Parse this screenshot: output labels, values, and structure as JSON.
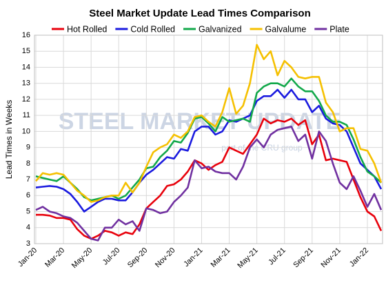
{
  "chart_data": {
    "type": "line",
    "title": "Steel Market Update Lead Times Comparison",
    "ylabel": "Lead Times in Weeks",
    "watermark": "STEEL MARKET UPDATE",
    "watermark_sub": "part of the CRU group",
    "categories": [
      "Jan-20",
      null,
      null,
      null,
      "Mar-20",
      null,
      null,
      null,
      "May-20",
      null,
      null,
      null,
      "Jul-20",
      null,
      null,
      null,
      "Sep-20",
      null,
      null,
      null,
      "Nov-20",
      null,
      null,
      null,
      "Jan-21",
      null,
      null,
      null,
      "Mar-21",
      null,
      null,
      null,
      "May-21",
      null,
      null,
      null,
      "Jul-21",
      null,
      null,
      null,
      "Sep-21",
      null,
      null,
      null,
      "Nov-21",
      null,
      null,
      null,
      "Jan-22",
      null,
      null
    ],
    "series": [
      {
        "name": "Hot Rolled",
        "color": "#e8000b",
        "values": [
          4.8,
          4.8,
          4.75,
          4.6,
          4.6,
          4.5,
          3.9,
          3.5,
          3.3,
          3.5,
          3.8,
          3.7,
          3.5,
          3.7,
          3.6,
          4.2,
          5.2,
          5.6,
          6.0,
          6.6,
          6.7,
          7.0,
          7.5,
          8.2,
          8.0,
          7.6,
          7.9,
          8.1,
          9.0,
          8.8,
          8.6,
          9.2,
          9.8,
          10.8,
          10.5,
          10.7,
          10.6,
          10.8,
          10.4,
          10.7,
          9.2,
          9.8,
          8.2,
          8.3,
          8.2,
          8.1,
          7.0,
          5.9,
          5.0,
          4.7,
          3.8
        ]
      },
      {
        "name": "Cold Rolled",
        "color": "#1a1adf",
        "values": [
          6.5,
          6.55,
          6.6,
          6.55,
          6.4,
          6.1,
          5.6,
          5.0,
          5.3,
          5.6,
          5.8,
          5.8,
          5.7,
          5.7,
          6.2,
          6.8,
          7.3,
          7.6,
          8.0,
          8.4,
          8.3,
          8.9,
          8.8,
          10.0,
          10.3,
          10.3,
          9.8,
          10.0,
          10.7,
          10.6,
          10.8,
          11.0,
          11.9,
          12.2,
          12.2,
          12.6,
          12.1,
          12.6,
          12.0,
          12.0,
          11.2,
          11.6,
          10.8,
          10.5,
          10.4,
          10.0,
          9.0,
          8.0,
          7.6,
          7.2,
          6.4
        ]
      },
      {
        "name": "Galvanized",
        "color": "#12a84a",
        "values": [
          7.2,
          7.1,
          7.0,
          6.9,
          7.2,
          6.8,
          6.4,
          5.9,
          5.7,
          5.8,
          5.9,
          6.0,
          5.8,
          6.0,
          6.5,
          7.0,
          7.7,
          7.8,
          8.4,
          8.8,
          9.4,
          9.3,
          9.9,
          10.8,
          10.9,
          10.5,
          10.0,
          10.9,
          10.6,
          10.7,
          10.8,
          10.6,
          12.4,
          12.8,
          13.0,
          13.0,
          12.8,
          13.3,
          12.8,
          12.5,
          12.5,
          11.9,
          11.0,
          10.6,
          10.6,
          10.4,
          9.5,
          8.4,
          7.5,
          7.2,
          6.8
        ]
      },
      {
        "name": "Galvalume",
        "color": "#f5c000",
        "values": [
          6.9,
          7.4,
          7.3,
          7.4,
          7.3,
          6.8,
          6.3,
          6.0,
          5.6,
          5.7,
          5.9,
          6.0,
          6.0,
          6.8,
          6.2,
          6.8,
          7.8,
          8.7,
          9.0,
          9.2,
          9.8,
          9.6,
          10.0,
          10.9,
          11.0,
          10.6,
          10.3,
          11.2,
          12.7,
          11.1,
          11.6,
          13.0,
          15.4,
          14.5,
          15.0,
          13.5,
          14.4,
          14.0,
          13.4,
          13.3,
          13.4,
          13.4,
          11.8,
          11.2,
          10.0,
          10.2,
          10.2,
          8.9,
          8.8,
          8.0,
          6.8
        ]
      },
      {
        "name": "Plate",
        "color": "#7030a0",
        "values": [
          5.1,
          5.3,
          5.0,
          4.9,
          4.7,
          4.6,
          4.3,
          3.8,
          3.3,
          3.2,
          4.0,
          4.0,
          4.5,
          4.2,
          4.4,
          3.8,
          5.2,
          5.1,
          4.9,
          5.0,
          5.6,
          6.0,
          6.5,
          8.2,
          7.7,
          7.8,
          7.5,
          7.4,
          7.4,
          7.0,
          7.8,
          9.0,
          9.5,
          9.0,
          9.8,
          10.1,
          10.2,
          10.3,
          9.4,
          9.8,
          8.3,
          10.0,
          9.4,
          8.0,
          6.8,
          6.4,
          7.2,
          6.3,
          5.3,
          6.1,
          5.1
        ]
      }
    ],
    "ylim": [
      3,
      16
    ],
    "yticks": [
      3,
      4,
      5,
      6,
      7,
      8,
      9,
      10,
      11,
      12,
      13,
      14,
      15,
      16
    ],
    "grid": true
  }
}
